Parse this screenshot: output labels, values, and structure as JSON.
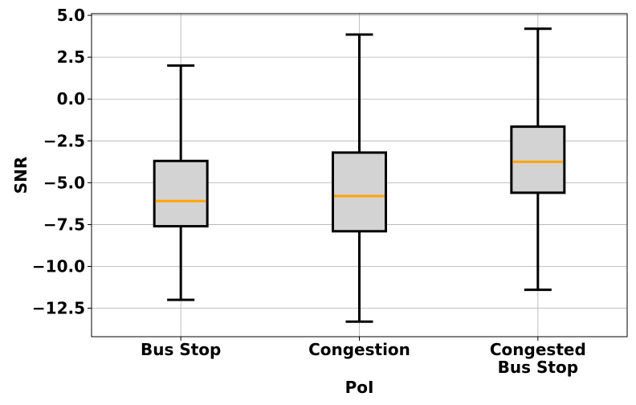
{
  "chart_data": {
    "type": "box",
    "xlabel": "PoI",
    "ylabel": "SNR",
    "ylim": [
      -14.2,
      5.1
    ],
    "yticks": [
      5.0,
      2.5,
      0.0,
      -2.5,
      -5.0,
      -7.5,
      -10.0,
      -12.5
    ],
    "ytick_labels": [
      "5.0",
      "2.5",
      "0.0",
      "−2.5",
      "−5.0",
      "−7.5",
      "−10.0",
      "−12.5"
    ],
    "grid": true,
    "categories": [
      {
        "label_lines": [
          "Bus Stop"
        ]
      },
      {
        "label_lines": [
          "Congestion"
        ]
      },
      {
        "label_lines": [
          "Congested",
          "Bus Stop"
        ]
      }
    ],
    "boxes": [
      {
        "whislo": -12.0,
        "q1": -7.6,
        "med": -6.1,
        "q3": -3.7,
        "whishi": 2.0
      },
      {
        "whislo": -13.3,
        "q1": -7.9,
        "med": -5.8,
        "q3": -3.2,
        "whishi": 3.85
      },
      {
        "whislo": -11.4,
        "q1": -5.6,
        "med": -3.75,
        "q3": -1.65,
        "whishi": 4.2
      }
    ],
    "colors": {
      "box_fill": "#d3d3d3",
      "box_edge": "#000000",
      "median": "#ffa500",
      "grid": "#b0b0b0"
    }
  }
}
